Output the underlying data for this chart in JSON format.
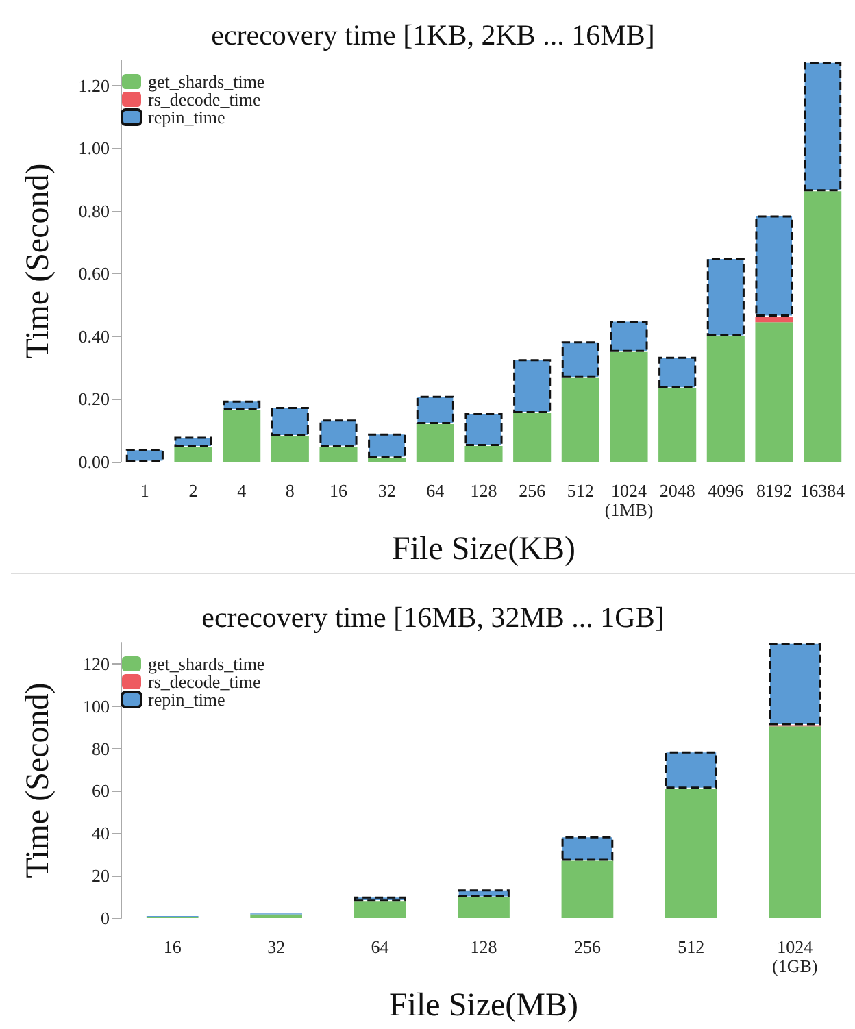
{
  "chart_data": [
    {
      "type": "bar",
      "title": "ecrecovery time [1KB, 2KB ... 16MB]",
      "xlabel": "File Size(KB)",
      "ylabel": "Time (Second)",
      "stacked": true,
      "legend": "top left",
      "grid": false,
      "categories": [
        "1",
        "2",
        "4",
        "8",
        "16",
        "32",
        "64",
        "128",
        "256",
        "512",
        "1024\n(1MB)",
        "2048",
        "4096",
        "8192",
        "16384"
      ],
      "ylim": [
        0,
        1.28
      ],
      "yticks": [
        {
          "value": 0,
          "label": "0.00"
        },
        {
          "value": 0.2,
          "label": "0.20"
        },
        {
          "value": 0.4,
          "label": "0.40"
        },
        {
          "value": 0.6,
          "label": "0.60"
        },
        {
          "value": 0.8,
          "label": "0.80"
        },
        {
          "value": 1.0,
          "label": "1.00"
        },
        {
          "value": 1.2,
          "label": "1.20"
        }
      ],
      "series": [
        {
          "name": "get_shards_time",
          "color": "#77c26a",
          "line_style": "solid",
          "values": [
            null,
            0.047,
            0.165,
            0.082,
            0.048,
            0.013,
            0.12,
            0.05,
            0.155,
            0.267,
            0.35,
            0.234,
            0.4,
            0.445,
            0.862
          ]
        },
        {
          "name": "rs_decode_time",
          "color": "#ee5a60",
          "line_style": "solid",
          "values": [
            null,
            null,
            null,
            null,
            null,
            null,
            null,
            null,
            null,
            null,
            null,
            null,
            null,
            0.018,
            null
          ]
        },
        {
          "name": "repin_time",
          "color": "#5b9bd5",
          "line_style": "dashed",
          "values": [
            0.04,
            0.033,
            0.03,
            0.093,
            0.087,
            0.077,
            0.09,
            0.105,
            0.172,
            0.117,
            0.1,
            0.101,
            0.25,
            0.322,
            0.413
          ]
        }
      ]
    },
    {
      "type": "bar",
      "title": "ecrecovery time [16MB, 32MB ... 1GB]",
      "xlabel": "File Size(MB)",
      "ylabel": "Time (Second)",
      "stacked": true,
      "legend": "top left",
      "grid": false,
      "categories": [
        "16",
        "32",
        "64",
        "128",
        "256",
        "512",
        "1024\n(1GB)"
      ],
      "ylim": [
        0,
        130
      ],
      "yticks": [
        0,
        20,
        40,
        60,
        80,
        100,
        120
      ],
      "series": [
        {
          "name": "get_shards_time",
          "color": "#77c26a",
          "line_style": "solid",
          "values": [
            0.6,
            1.8,
            8.0,
            9.7,
            27,
            61,
            90.5
          ]
        },
        {
          "name": "rs_decode_time",
          "color": "#ee5a60",
          "line_style": "solid",
          "values": [
            null,
            null,
            null,
            null,
            null,
            null,
            0.5
          ]
        },
        {
          "name": "repin_time",
          "color": "#5b9bd5",
          "line_style": "dashed",
          "values": [
            0.4,
            0.4,
            2.1,
            3.8,
            11.6,
            17.7,
            38.9
          ]
        }
      ]
    }
  ]
}
